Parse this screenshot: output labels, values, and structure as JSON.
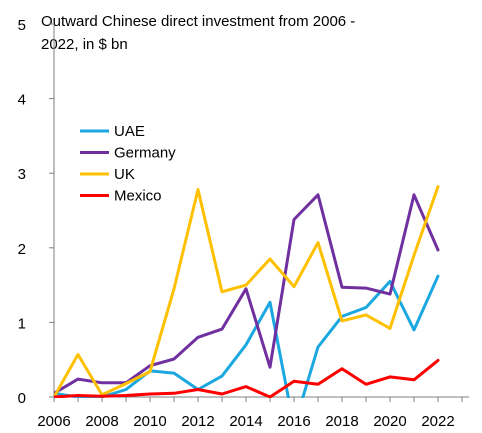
{
  "chart_data": {
    "type": "line",
    "title_lines": [
      "Outward Chinese direct investment from 2006 -",
      "2022, in $ bn"
    ],
    "xlabel": "",
    "ylabel": "",
    "x": [
      2006,
      2007,
      2008,
      2009,
      2010,
      2011,
      2012,
      2013,
      2014,
      2015,
      2016,
      2017,
      2018,
      2019,
      2020,
      2021,
      2022
    ],
    "x_tick_labels": [
      "2006",
      "2008",
      "2010",
      "2012",
      "2014",
      "2016",
      "2018",
      "2020",
      "2022"
    ],
    "y_tick_labels": [
      "0",
      "1",
      "2",
      "3",
      "4",
      "5"
    ],
    "xlim": [
      2006,
      2023.5
    ],
    "ylim": [
      0,
      5
    ],
    "grid": false,
    "legend": "upper-left",
    "series": [
      {
        "name": "UAE",
        "color": "#1ba8e0",
        "values": [
          0.05,
          0.0,
          0.0,
          0.1,
          0.35,
          0.32,
          0.1,
          0.28,
          0.7,
          1.27,
          -0.4,
          0.67,
          1.08,
          1.2,
          1.55,
          0.9,
          1.62
        ]
      },
      {
        "name": "Germany",
        "color": "#7030a0",
        "values": [
          0.05,
          0.24,
          0.19,
          0.19,
          0.42,
          0.51,
          0.8,
          0.91,
          1.45,
          0.4,
          2.38,
          2.71,
          1.47,
          1.46,
          1.38,
          2.71,
          1.97
        ]
      },
      {
        "name": "UK",
        "color": "#ffc000",
        "values": [
          0.0,
          0.57,
          0.03,
          0.18,
          0.34,
          1.45,
          2.78,
          1.41,
          1.5,
          1.85,
          1.48,
          2.07,
          1.02,
          1.1,
          0.92,
          1.9,
          2.82
        ]
      },
      {
        "name": "Mexico",
        "color": "#ff0000",
        "values": [
          0.0,
          0.02,
          0.01,
          0.02,
          0.04,
          0.05,
          0.1,
          0.04,
          0.14,
          0.0,
          0.21,
          0.17,
          0.38,
          0.17,
          0.27,
          0.23,
          0.49
        ]
      }
    ]
  }
}
